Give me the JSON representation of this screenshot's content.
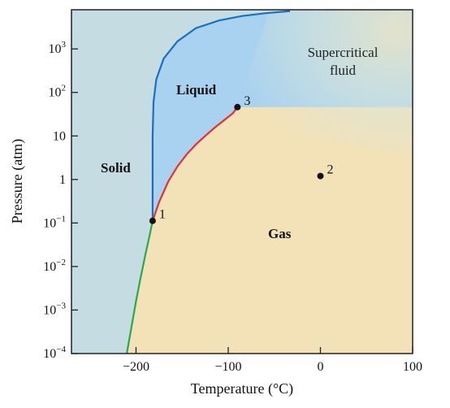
{
  "chart_data": {
    "type": "line",
    "title": "",
    "xlabel": "Temperature (°C)",
    "ylabel": "Pressure (atm)",
    "xlim": [
      -270,
      100
    ],
    "ylim": [
      -4,
      3.9
    ],
    "y_scale": "log",
    "x_ticks": [
      {
        "value": -200,
        "label": "−200"
      },
      {
        "value": -100,
        "label": "−100"
      },
      {
        "value": 0,
        "label": "0"
      },
      {
        "value": 100,
        "label": "100"
      }
    ],
    "y_ticks": [
      {
        "exp": -4,
        "base": "10",
        "sup": "−4"
      },
      {
        "exp": -3,
        "base": "10",
        "sup": "−3"
      },
      {
        "exp": -2,
        "base": "10",
        "sup": "−2"
      },
      {
        "exp": -1,
        "base": "10",
        "sup": "−1"
      },
      {
        "exp": 0,
        "base": "1",
        "sup": ""
      },
      {
        "exp": 1,
        "base": "10",
        "sup": ""
      },
      {
        "exp": 2,
        "base": "10",
        "sup": "2"
      },
      {
        "exp": 3,
        "base": "10",
        "sup": "3"
      }
    ],
    "regions": {
      "solid": "Solid",
      "liquid": "Liquid",
      "gas": "Gas",
      "supercritical_line1": "Supercritical",
      "supercritical_line2": "fluid"
    },
    "colors": {
      "solid_fill": "#c5dde2",
      "liquid_fill": "#a9d2f0",
      "gas_fill": "#f3e2b8",
      "supercritical_fill": "#d8e4d8",
      "sublimation_curve": "#2aa84a",
      "vaporization_curve": "#e0303a",
      "melting_curve": "#1a6fc4",
      "point": "#111111"
    },
    "series": [
      {
        "name": "",
        "role": "sublimation",
        "x": [
          -210,
          -205,
          -200,
          -195,
          -190,
          -185,
          -182
        ],
        "y": [
          0.0001,
          0.0004,
          0.0016,
          0.0055,
          0.018,
          0.055,
          0.112
        ]
      },
      {
        "name": "",
        "role": "vaporization",
        "x": [
          -182,
          -175,
          -165,
          -155,
          -145,
          -135,
          -125,
          -115,
          -105,
          -95,
          -90
        ],
        "y": [
          0.112,
          0.3,
          0.9,
          2.0,
          3.8,
          6.4,
          10.0,
          15.3,
          22.5,
          33.0,
          46
        ]
      },
      {
        "name": "",
        "role": "melting",
        "x": [
          -182,
          -182,
          -182,
          -181,
          -178,
          -170,
          -155,
          -135,
          -110,
          -85,
          -60,
          -33
        ],
        "y": [
          0.112,
          1,
          10,
          60,
          200,
          600,
          1500,
          3000,
          4500,
          5700,
          6600,
          7400
        ]
      }
    ],
    "points": [
      {
        "label": "1",
        "x": -182,
        "y": 0.112
      },
      {
        "label": "2",
        "x": 0,
        "y": 1.2
      },
      {
        "label": "3",
        "x": -90,
        "y": 46
      }
    ]
  }
}
